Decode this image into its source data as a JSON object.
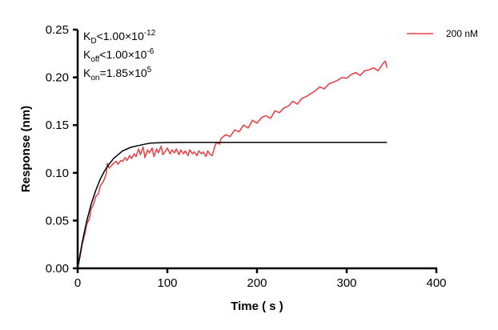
{
  "chart_data": {
    "type": "line",
    "xlabel": "Time ( s )",
    "ylabel": "Response (nm)",
    "xlim": [
      0,
      400
    ],
    "ylim": [
      0,
      0.25
    ],
    "xticks": [
      "0",
      "100",
      "200",
      "300",
      "400"
    ],
    "yticks": [
      "0.00",
      "0.05",
      "0.10",
      "0.15",
      "0.20",
      "0.25"
    ],
    "grid": false,
    "legend_position": "top-right",
    "annotations": {
      "kd": {
        "base": "K",
        "sub": "D",
        "rel": "<1.00×10",
        "exp": "-12"
      },
      "koff": {
        "base": "K",
        "sub": "off",
        "rel": "<1.00×10",
        "exp": "-6"
      },
      "kon": {
        "base": "K",
        "sub": "on",
        "rel": "=1.85×10",
        "exp": "5"
      }
    },
    "series": [
      {
        "name": "200 nM",
        "color": "#e8474b",
        "x": [
          0,
          3,
          5,
          8,
          10,
          13,
          15,
          18,
          20,
          23,
          25,
          28,
          30,
          32,
          33,
          35,
          38,
          40,
          43,
          45,
          48,
          50,
          53,
          55,
          58,
          60,
          63,
          65,
          68,
          70,
          73,
          75,
          78,
          80,
          83,
          85,
          88,
          90,
          93,
          95,
          98,
          100,
          103,
          105,
          108,
          110,
          113,
          115,
          118,
          120,
          123,
          125,
          128,
          130,
          133,
          135,
          138,
          140,
          143,
          145,
          148,
          150,
          153,
          155,
          158,
          160,
          165,
          170,
          175,
          180,
          185,
          190,
          195,
          200,
          205,
          210,
          215,
          220,
          225,
          230,
          235,
          240,
          245,
          250,
          255,
          260,
          265,
          270,
          275,
          280,
          285,
          290,
          295,
          300,
          305,
          310,
          315,
          320,
          325,
          330,
          335,
          340,
          343,
          345
        ],
        "y": [
          0,
          0.014,
          0.025,
          0.036,
          0.046,
          0.052,
          0.062,
          0.068,
          0.075,
          0.078,
          0.086,
          0.09,
          0.094,
          0.1,
          0.11,
          0.105,
          0.108,
          0.11,
          0.112,
          0.109,
          0.113,
          0.112,
          0.116,
          0.113,
          0.118,
          0.115,
          0.12,
          0.117,
          0.125,
          0.119,
          0.127,
          0.116,
          0.124,
          0.121,
          0.126,
          0.117,
          0.125,
          0.121,
          0.128,
          0.119,
          0.123,
          0.126,
          0.12,
          0.124,
          0.121,
          0.125,
          0.119,
          0.124,
          0.12,
          0.123,
          0.118,
          0.124,
          0.12,
          0.122,
          0.118,
          0.123,
          0.12,
          0.122,
          0.117,
          0.123,
          0.119,
          0.118,
          0.128,
          0.132,
          0.13,
          0.136,
          0.14,
          0.138,
          0.145,
          0.143,
          0.15,
          0.147,
          0.155,
          0.152,
          0.158,
          0.16,
          0.157,
          0.165,
          0.163,
          0.168,
          0.17,
          0.175,
          0.172,
          0.178,
          0.18,
          0.183,
          0.186,
          0.19,
          0.188,
          0.193,
          0.195,
          0.197,
          0.2,
          0.199,
          0.203,
          0.205,
          0.202,
          0.207,
          0.208,
          0.21,
          0.207,
          0.214,
          0.217,
          0.21
        ]
      },
      {
        "color": "#000000",
        "fit": true,
        "x": [
          0,
          5,
          10,
          15,
          20,
          25,
          30,
          35,
          40,
          45,
          50,
          55,
          60,
          70,
          80,
          90,
          100,
          120,
          140,
          160,
          180,
          200,
          250,
          300,
          345
        ],
        "y": [
          0,
          0.027,
          0.049,
          0.067,
          0.081,
          0.093,
          0.102,
          0.109,
          0.115,
          0.119,
          0.123,
          0.125,
          0.127,
          0.129,
          0.131,
          0.1315,
          0.1318,
          0.132,
          0.132,
          0.132,
          0.132,
          0.132,
          0.132,
          0.132,
          0.132
        ]
      }
    ]
  }
}
